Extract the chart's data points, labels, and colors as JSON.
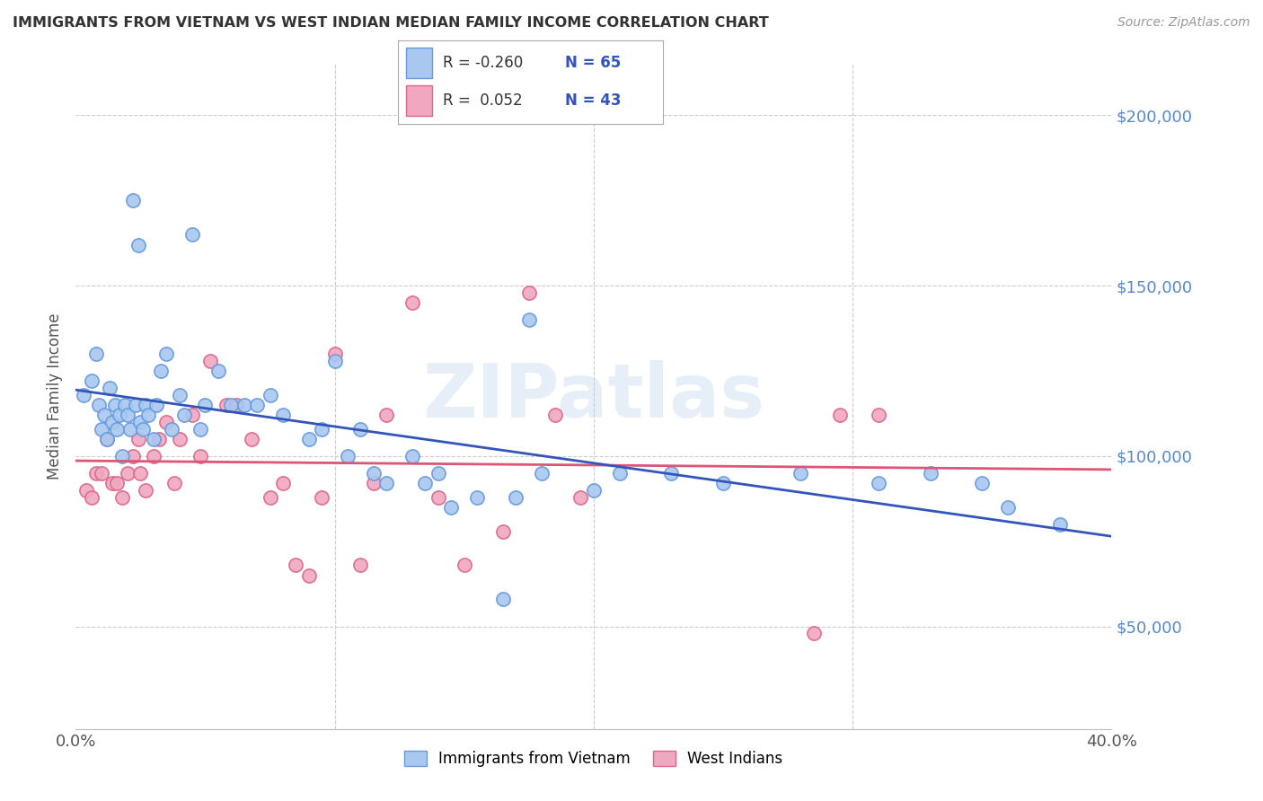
{
  "title": "IMMIGRANTS FROM VIETNAM VS WEST INDIAN MEDIAN FAMILY INCOME CORRELATION CHART",
  "source": "Source: ZipAtlas.com",
  "ylabel": "Median Family Income",
  "ytick_labels": [
    "$50,000",
    "$100,000",
    "$150,000",
    "$200,000"
  ],
  "ytick_values": [
    50000,
    100000,
    150000,
    200000
  ],
  "ymin": 20000,
  "ymax": 215000,
  "xmin": 0.0,
  "xmax": 0.4,
  "color_vietnam": "#A8C8F0",
  "color_westindian": "#F0A8C0",
  "color_vietnam_edge": "#6699DD",
  "color_westindian_edge": "#DD6688",
  "color_vietnam_line": "#3355BB",
  "color_westindian_line": "#DD5577",
  "color_title": "#333333",
  "color_source": "#999999",
  "color_ytick": "#5588CC",
  "watermark": "ZIPatlas",
  "background_color": "#FFFFFF",
  "grid_color": "#CCCCCC",
  "marker_size": 120,
  "vietnam_x": [
    0.003,
    0.006,
    0.008,
    0.009,
    0.01,
    0.011,
    0.012,
    0.013,
    0.014,
    0.015,
    0.016,
    0.017,
    0.018,
    0.019,
    0.02,
    0.021,
    0.022,
    0.023,
    0.024,
    0.025,
    0.026,
    0.027,
    0.028,
    0.03,
    0.031,
    0.033,
    0.035,
    0.037,
    0.04,
    0.042,
    0.045,
    0.048,
    0.05,
    0.055,
    0.06,
    0.065,
    0.07,
    0.075,
    0.08,
    0.09,
    0.095,
    0.1,
    0.105,
    0.11,
    0.115,
    0.12,
    0.13,
    0.135,
    0.14,
    0.145,
    0.155,
    0.165,
    0.17,
    0.175,
    0.18,
    0.2,
    0.21,
    0.23,
    0.25,
    0.28,
    0.31,
    0.33,
    0.35,
    0.36,
    0.38
  ],
  "vietnam_y": [
    118000,
    122000,
    130000,
    115000,
    108000,
    112000,
    105000,
    120000,
    110000,
    115000,
    108000,
    112000,
    100000,
    115000,
    112000,
    108000,
    175000,
    115000,
    162000,
    110000,
    108000,
    115000,
    112000,
    105000,
    115000,
    125000,
    130000,
    108000,
    118000,
    112000,
    165000,
    108000,
    115000,
    125000,
    115000,
    115000,
    115000,
    118000,
    112000,
    105000,
    108000,
    128000,
    100000,
    108000,
    95000,
    92000,
    100000,
    92000,
    95000,
    85000,
    88000,
    58000,
    88000,
    140000,
    95000,
    90000,
    95000,
    95000,
    92000,
    95000,
    92000,
    95000,
    92000,
    85000,
    80000
  ],
  "westindian_x": [
    0.004,
    0.006,
    0.008,
    0.01,
    0.012,
    0.014,
    0.016,
    0.018,
    0.02,
    0.022,
    0.024,
    0.025,
    0.027,
    0.03,
    0.032,
    0.035,
    0.038,
    0.04,
    0.045,
    0.048,
    0.052,
    0.058,
    0.062,
    0.068,
    0.075,
    0.08,
    0.085,
    0.09,
    0.095,
    0.1,
    0.11,
    0.115,
    0.12,
    0.13,
    0.14,
    0.15,
    0.165,
    0.175,
    0.185,
    0.195,
    0.285,
    0.295,
    0.31
  ],
  "westindian_y": [
    90000,
    88000,
    95000,
    95000,
    105000,
    92000,
    92000,
    88000,
    95000,
    100000,
    105000,
    95000,
    90000,
    100000,
    105000,
    110000,
    92000,
    105000,
    112000,
    100000,
    128000,
    115000,
    115000,
    105000,
    88000,
    92000,
    68000,
    65000,
    88000,
    130000,
    68000,
    92000,
    112000,
    145000,
    88000,
    68000,
    78000,
    148000,
    112000,
    88000,
    48000,
    112000,
    112000
  ]
}
